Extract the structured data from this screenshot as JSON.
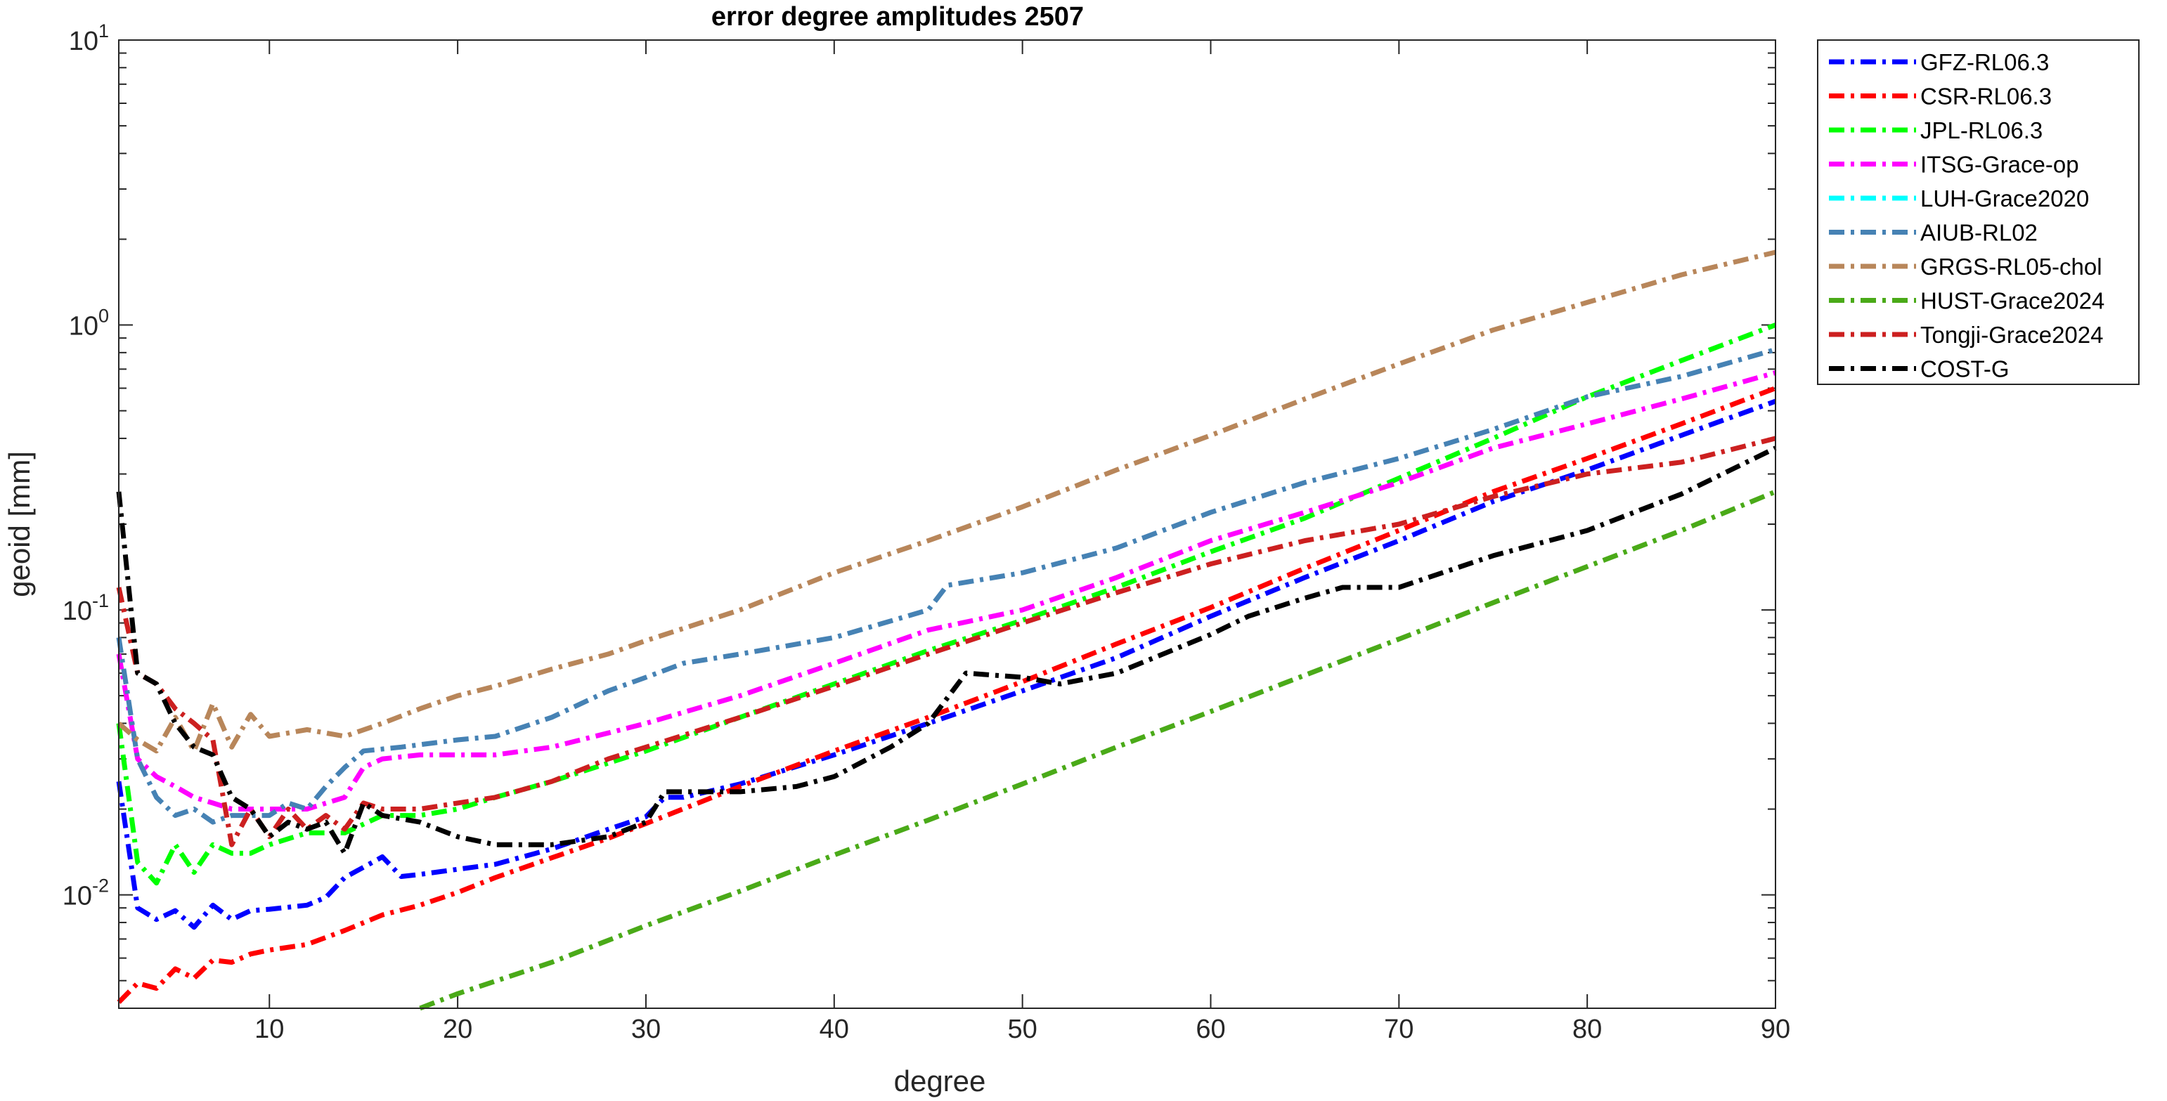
{
  "chart_data": {
    "type": "line",
    "title": "error degree amplitudes 2507",
    "xlabel": "degree",
    "ylabel": "geoid [mm]",
    "xlim": [
      2,
      90
    ],
    "ylim": [
      0.004,
      10
    ],
    "yscale": "log",
    "xticks": [
      10,
      20,
      30,
      40,
      50,
      60,
      70,
      80,
      90
    ],
    "yticks": [
      {
        "value": 10,
        "base": "10",
        "exp": "1"
      },
      {
        "value": 1,
        "base": "10",
        "exp": "0"
      },
      {
        "value": 0.1,
        "base": "10",
        "exp": "-1"
      },
      {
        "value": 0.01,
        "base": "10",
        "exp": "-2"
      }
    ],
    "grid": false,
    "legend_position": "outside-right-top",
    "line_style": "dash-dot",
    "series": [
      {
        "name": "GFZ-RL06.3",
        "color": "#0000ff",
        "points": [
          [
            2,
            0.025
          ],
          [
            3,
            0.009
          ],
          [
            4,
            0.0082
          ],
          [
            5,
            0.0088
          ],
          [
            6,
            0.0077
          ],
          [
            7,
            0.0092
          ],
          [
            8,
            0.0082
          ],
          [
            9,
            0.0088
          ],
          [
            10,
            0.0089
          ],
          [
            12,
            0.0092
          ],
          [
            13,
            0.0098
          ],
          [
            14,
            0.0115
          ],
          [
            16,
            0.0136
          ],
          [
            17,
            0.0116
          ],
          [
            18,
            0.0118
          ],
          [
            20,
            0.0123
          ],
          [
            22,
            0.0128
          ],
          [
            25,
            0.0145
          ],
          [
            28,
            0.017
          ],
          [
            30,
            0.0188
          ],
          [
            31,
            0.022
          ],
          [
            32,
            0.022
          ],
          [
            35,
            0.0245
          ],
          [
            40,
            0.031
          ],
          [
            45,
            0.04
          ],
          [
            50,
            0.052
          ],
          [
            55,
            0.068
          ],
          [
            60,
            0.095
          ],
          [
            65,
            0.13
          ],
          [
            70,
            0.175
          ],
          [
            75,
            0.24
          ],
          [
            80,
            0.31
          ],
          [
            85,
            0.41
          ],
          [
            90,
            0.54
          ]
        ]
      },
      {
        "name": "CSR-RL06.3",
        "color": "#ff0000",
        "points": [
          [
            2,
            0.0042
          ],
          [
            3,
            0.0049
          ],
          [
            4,
            0.0047
          ],
          [
            5,
            0.0055
          ],
          [
            6,
            0.0051
          ],
          [
            7,
            0.0059
          ],
          [
            8,
            0.0058
          ],
          [
            9,
            0.0062
          ],
          [
            10,
            0.0064
          ],
          [
            12,
            0.0067
          ],
          [
            14,
            0.0075
          ],
          [
            16,
            0.0085
          ],
          [
            18,
            0.0092
          ],
          [
            20,
            0.0102
          ],
          [
            22,
            0.0115
          ],
          [
            25,
            0.0135
          ],
          [
            28,
            0.0158
          ],
          [
            30,
            0.0178
          ],
          [
            35,
            0.024
          ],
          [
            40,
            0.032
          ],
          [
            45,
            0.042
          ],
          [
            50,
            0.056
          ],
          [
            55,
            0.076
          ],
          [
            60,
            0.102
          ],
          [
            65,
            0.14
          ],
          [
            70,
            0.19
          ],
          [
            75,
            0.26
          ],
          [
            80,
            0.34
          ],
          [
            85,
            0.45
          ],
          [
            90,
            0.6
          ]
        ]
      },
      {
        "name": "JPL-RL06.3",
        "color": "#00ff00",
        "points": [
          [
            2,
            0.04
          ],
          [
            3,
            0.013
          ],
          [
            4,
            0.011
          ],
          [
            5,
            0.015
          ],
          [
            6,
            0.012
          ],
          [
            7,
            0.015
          ],
          [
            8,
            0.014
          ],
          [
            9,
            0.014
          ],
          [
            10,
            0.015
          ],
          [
            12,
            0.0165
          ],
          [
            14,
            0.0165
          ],
          [
            16,
            0.019
          ],
          [
            18,
            0.019
          ],
          [
            20,
            0.02
          ],
          [
            22,
            0.022
          ],
          [
            25,
            0.025
          ],
          [
            28,
            0.029
          ],
          [
            30,
            0.032
          ],
          [
            35,
            0.042
          ],
          [
            40,
            0.055
          ],
          [
            45,
            0.072
          ],
          [
            50,
            0.092
          ],
          [
            55,
            0.12
          ],
          [
            60,
            0.16
          ],
          [
            65,
            0.21
          ],
          [
            70,
            0.29
          ],
          [
            75,
            0.4
          ],
          [
            80,
            0.56
          ],
          [
            85,
            0.75
          ],
          [
            90,
            1.0
          ]
        ]
      },
      {
        "name": "ITSG-Grace-op",
        "color": "#ff00ff",
        "points": [
          [
            2,
            0.07
          ],
          [
            3,
            0.03
          ],
          [
            4,
            0.026
          ],
          [
            5,
            0.024
          ],
          [
            6,
            0.022
          ],
          [
            7,
            0.021
          ],
          [
            8,
            0.02
          ],
          [
            10,
            0.02
          ],
          [
            12,
            0.02
          ],
          [
            14,
            0.022
          ],
          [
            15,
            0.028
          ],
          [
            16,
            0.03
          ],
          [
            18,
            0.031
          ],
          [
            20,
            0.031
          ],
          [
            22,
            0.031
          ],
          [
            25,
            0.033
          ],
          [
            28,
            0.037
          ],
          [
            30,
            0.04
          ],
          [
            35,
            0.05
          ],
          [
            40,
            0.065
          ],
          [
            45,
            0.085
          ],
          [
            50,
            0.1
          ],
          [
            55,
            0.13
          ],
          [
            60,
            0.175
          ],
          [
            65,
            0.22
          ],
          [
            70,
            0.28
          ],
          [
            75,
            0.37
          ],
          [
            80,
            0.45
          ],
          [
            85,
            0.55
          ],
          [
            90,
            0.68
          ]
        ]
      },
      {
        "name": "LUH-Grace2020",
        "color": "#00ffff",
        "points": []
      },
      {
        "name": "AIUB-RL02",
        "color": "#4682b4",
        "points": [
          [
            2,
            0.08
          ],
          [
            3,
            0.03
          ],
          [
            4,
            0.022
          ],
          [
            5,
            0.019
          ],
          [
            6,
            0.02
          ],
          [
            7,
            0.018
          ],
          [
            8,
            0.019
          ],
          [
            10,
            0.019
          ],
          [
            11,
            0.021
          ],
          [
            12,
            0.02
          ],
          [
            13,
            0.024
          ],
          [
            14,
            0.028
          ],
          [
            15,
            0.032
          ],
          [
            17,
            0.033
          ],
          [
            20,
            0.035
          ],
          [
            22,
            0.036
          ],
          [
            25,
            0.042
          ],
          [
            28,
            0.052
          ],
          [
            30,
            0.058
          ],
          [
            32,
            0.065
          ],
          [
            35,
            0.07
          ],
          [
            40,
            0.08
          ],
          [
            45,
            0.1
          ],
          [
            46,
            0.122
          ],
          [
            50,
            0.135
          ],
          [
            55,
            0.165
          ],
          [
            60,
            0.22
          ],
          [
            65,
            0.28
          ],
          [
            70,
            0.34
          ],
          [
            75,
            0.43
          ],
          [
            80,
            0.56
          ],
          [
            85,
            0.66
          ],
          [
            90,
            0.82
          ]
        ]
      },
      {
        "name": "GRGS-RL05-chol",
        "color": "#b8865a",
        "points": [
          [
            2,
            0.04
          ],
          [
            3,
            0.035
          ],
          [
            4,
            0.032
          ],
          [
            5,
            0.042
          ],
          [
            6,
            0.032
          ],
          [
            7,
            0.047
          ],
          [
            8,
            0.033
          ],
          [
            9,
            0.043
          ],
          [
            10,
            0.036
          ],
          [
            12,
            0.038
          ],
          [
            14,
            0.036
          ],
          [
            16,
            0.04
          ],
          [
            18,
            0.045
          ],
          [
            20,
            0.05
          ],
          [
            22,
            0.054
          ],
          [
            25,
            0.062
          ],
          [
            28,
            0.07
          ],
          [
            30,
            0.078
          ],
          [
            35,
            0.1
          ],
          [
            40,
            0.135
          ],
          [
            45,
            0.175
          ],
          [
            50,
            0.23
          ],
          [
            55,
            0.31
          ],
          [
            60,
            0.41
          ],
          [
            65,
            0.55
          ],
          [
            70,
            0.73
          ],
          [
            75,
            0.96
          ],
          [
            80,
            1.2
          ],
          [
            85,
            1.5
          ],
          [
            90,
            1.8
          ]
        ]
      },
      {
        "name": "HUST-Grace2024",
        "color": "#4aaa18",
        "points": [
          [
            18,
            0.004
          ],
          [
            20,
            0.0045
          ],
          [
            25,
            0.0058
          ],
          [
            30,
            0.0078
          ],
          [
            35,
            0.0103
          ],
          [
            40,
            0.0138
          ],
          [
            45,
            0.0183
          ],
          [
            50,
            0.0245
          ],
          [
            55,
            0.033
          ],
          [
            60,
            0.044
          ],
          [
            65,
            0.059
          ],
          [
            70,
            0.079
          ],
          [
            75,
            0.106
          ],
          [
            80,
            0.142
          ],
          [
            85,
            0.19
          ],
          [
            90,
            0.26
          ]
        ]
      },
      {
        "name": "Tongji-Grace2024",
        "color": "#cc2020",
        "points": [
          [
            2,
            0.12
          ],
          [
            3,
            0.06
          ],
          [
            4,
            0.055
          ],
          [
            5,
            0.045
          ],
          [
            6,
            0.04
          ],
          [
            7,
            0.035
          ],
          [
            8,
            0.015
          ],
          [
            9,
            0.02
          ],
          [
            10,
            0.016
          ],
          [
            11,
            0.02
          ],
          [
            12,
            0.017
          ],
          [
            13,
            0.019
          ],
          [
            14,
            0.017
          ],
          [
            15,
            0.021
          ],
          [
            16,
            0.02
          ],
          [
            18,
            0.02
          ],
          [
            20,
            0.021
          ],
          [
            22,
            0.022
          ],
          [
            25,
            0.025
          ],
          [
            28,
            0.03
          ],
          [
            30,
            0.033
          ],
          [
            35,
            0.042
          ],
          [
            40,
            0.054
          ],
          [
            45,
            0.07
          ],
          [
            50,
            0.09
          ],
          [
            55,
            0.115
          ],
          [
            60,
            0.145
          ],
          [
            65,
            0.175
          ],
          [
            70,
            0.2
          ],
          [
            75,
            0.25
          ],
          [
            80,
            0.3
          ],
          [
            85,
            0.33
          ],
          [
            90,
            0.4
          ]
        ]
      },
      {
        "name": "COST-G",
        "color": "#000000",
        "points": [
          [
            2,
            0.26
          ],
          [
            3,
            0.06
          ],
          [
            4,
            0.055
          ],
          [
            5,
            0.04
          ],
          [
            6,
            0.033
          ],
          [
            7,
            0.031
          ],
          [
            8,
            0.022
          ],
          [
            9,
            0.02
          ],
          [
            10,
            0.016
          ],
          [
            11,
            0.018
          ],
          [
            12,
            0.017
          ],
          [
            13,
            0.018
          ],
          [
            14,
            0.014
          ],
          [
            15,
            0.021
          ],
          [
            16,
            0.019
          ],
          [
            18,
            0.018
          ],
          [
            20,
            0.016
          ],
          [
            22,
            0.015
          ],
          [
            25,
            0.015
          ],
          [
            28,
            0.016
          ],
          [
            30,
            0.018
          ],
          [
            31,
            0.023
          ],
          [
            32,
            0.023
          ],
          [
            35,
            0.023
          ],
          [
            38,
            0.024
          ],
          [
            40,
            0.026
          ],
          [
            43,
            0.033
          ],
          [
            45,
            0.04
          ],
          [
            47,
            0.06
          ],
          [
            50,
            0.058
          ],
          [
            52,
            0.055
          ],
          [
            55,
            0.06
          ],
          [
            60,
            0.082
          ],
          [
            62,
            0.095
          ],
          [
            65,
            0.11
          ],
          [
            67,
            0.12
          ],
          [
            70,
            0.12
          ],
          [
            75,
            0.155
          ],
          [
            80,
            0.19
          ],
          [
            85,
            0.255
          ],
          [
            90,
            0.37
          ]
        ]
      }
    ]
  }
}
